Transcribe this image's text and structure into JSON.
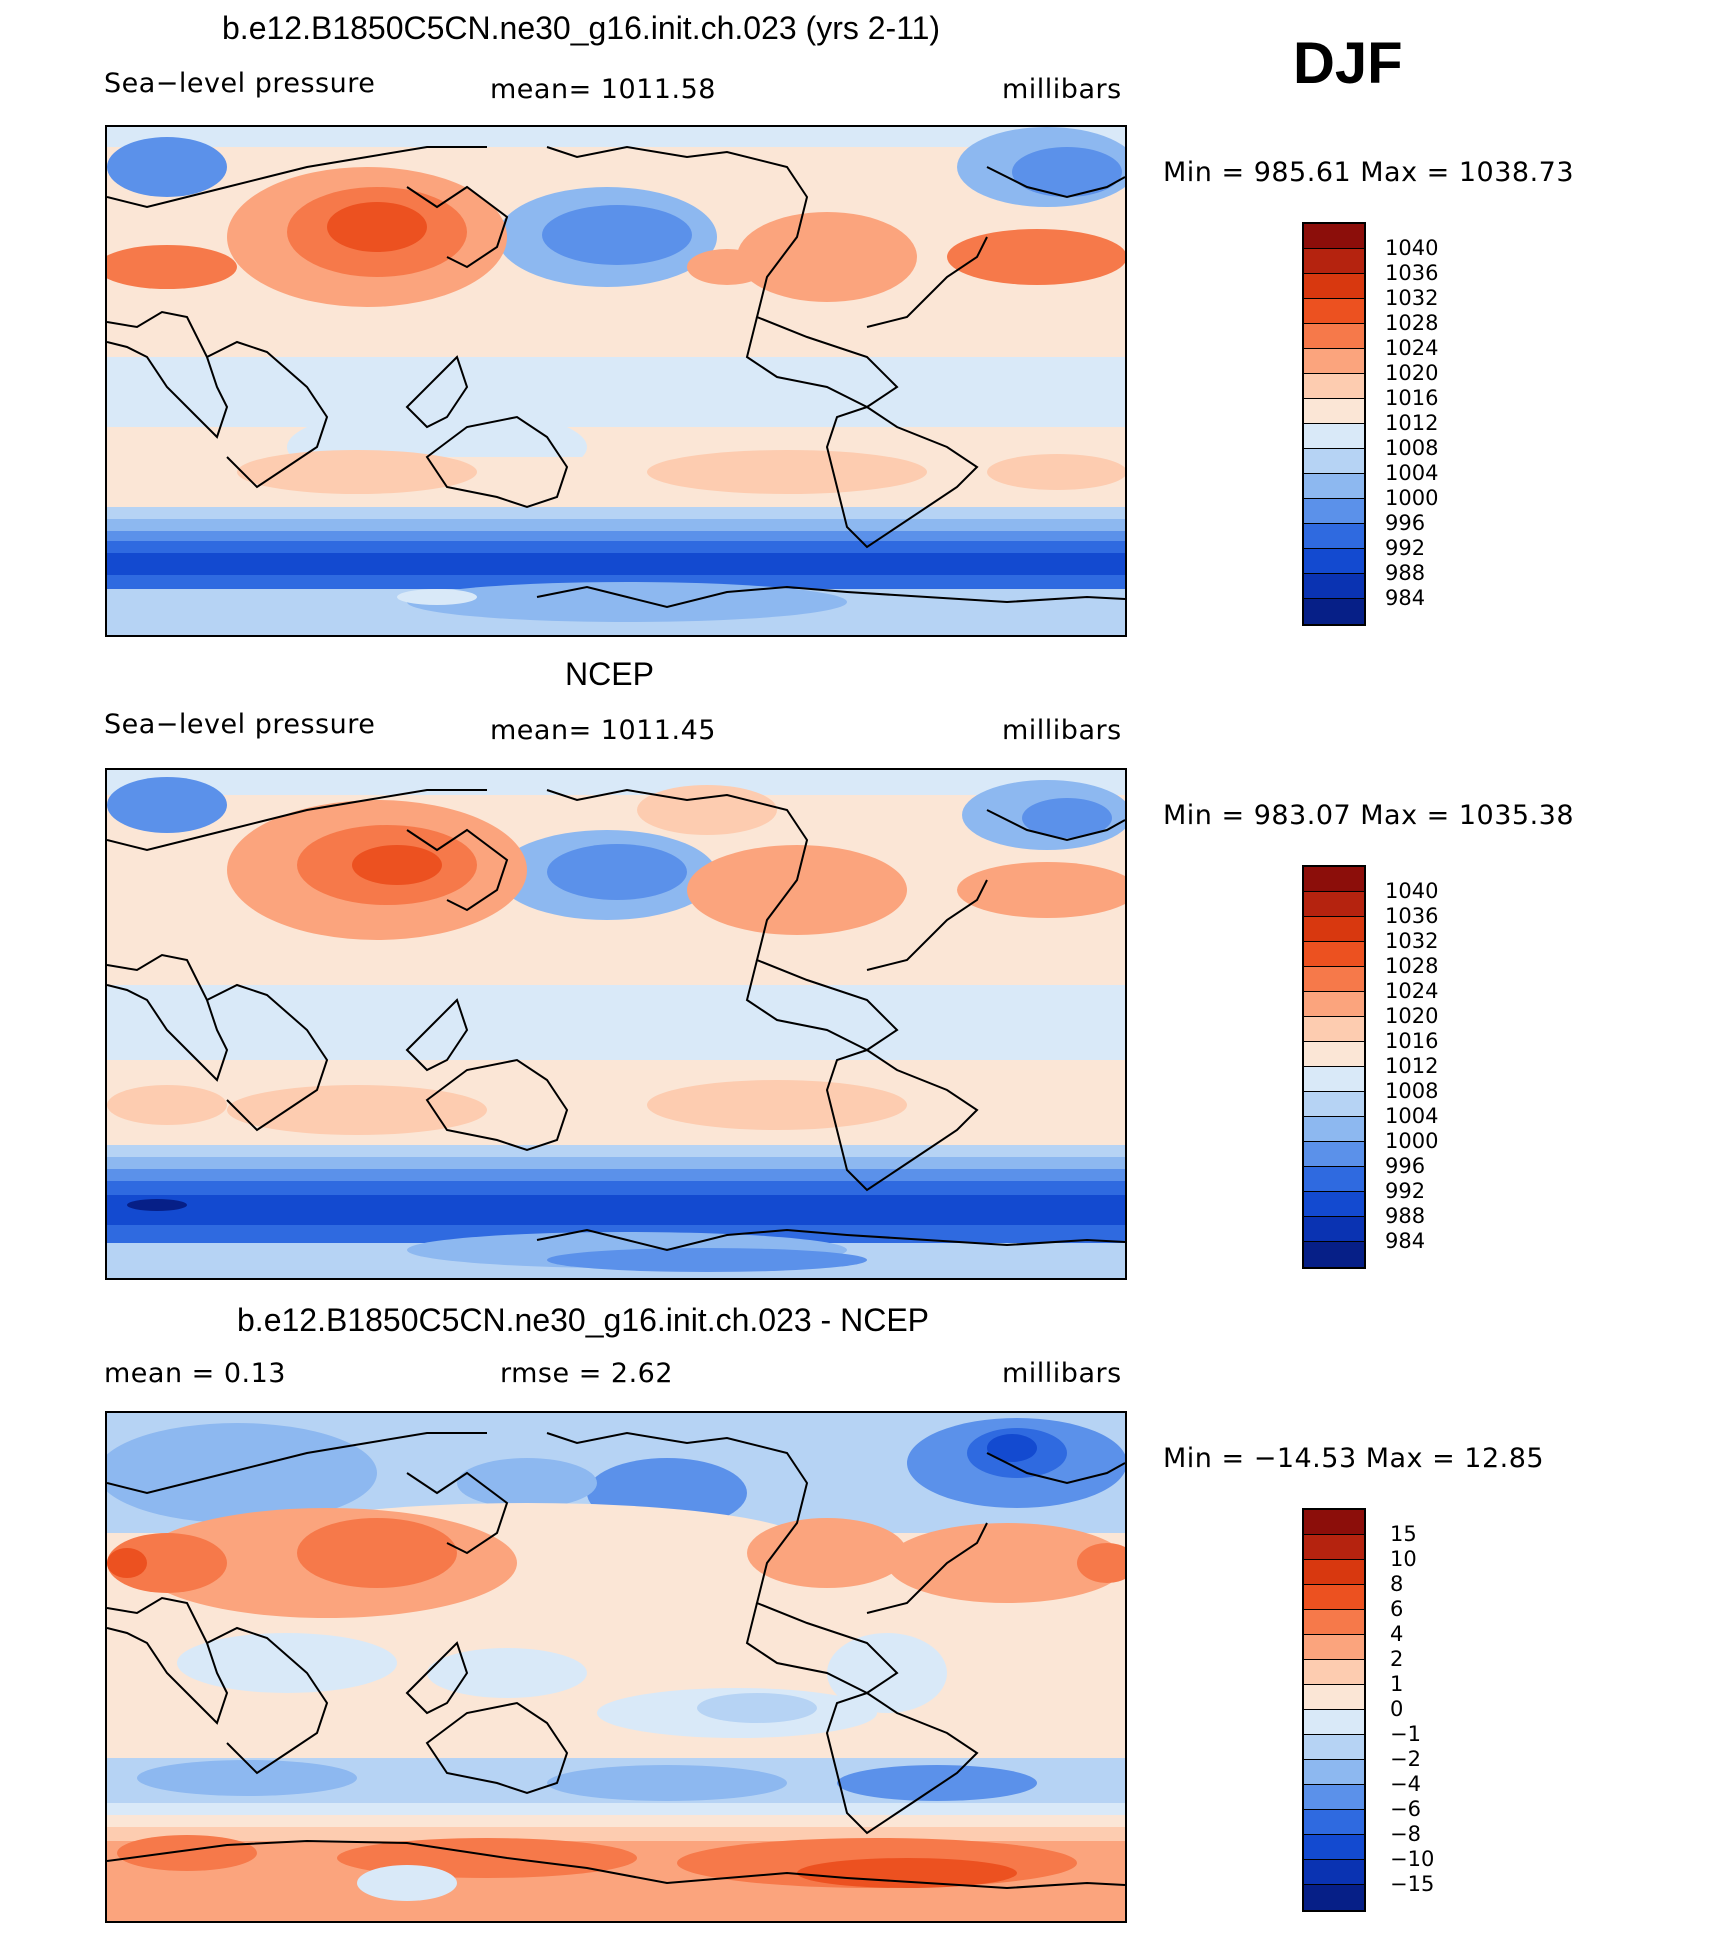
{
  "season": "DJF",
  "panels": [
    {
      "title": "b.e12.B1850C5CN.ne30_g16.init.ch.023 (yrs 2-11)",
      "left_label": "Sea−level pressure",
      "center_label": "mean=  1011.58",
      "right_label": "millibars",
      "minmax": "Min  =  985.61  Max  =  1038.73",
      "colorbar": {
        "labels": [
          "1040",
          "1036",
          "1032",
          "1028",
          "1024",
          "1020",
          "1016",
          "1012",
          "1008",
          "1004",
          "1000",
          "996",
          "992",
          "988",
          "984"
        ],
        "colors": [
          "#8c0e0a",
          "#b5230f",
          "#d8380f",
          "#ec5120",
          "#f6794a",
          "#fba47d",
          "#fdccb0",
          "#fbe6d6",
          "#d9e9f8",
          "#b6d3f4",
          "#8db8f0",
          "#5b91ea",
          "#2f6ae0",
          "#134ad0",
          "#0a33b2",
          "#061f87"
        ]
      }
    },
    {
      "title": "NCEP",
      "left_label": "Sea−level pressure",
      "center_label": "mean=  1011.45",
      "right_label": "millibars",
      "minmax": "Min  =  983.07  Max  =  1035.38",
      "colorbar": {
        "labels": [
          "1040",
          "1036",
          "1032",
          "1028",
          "1024",
          "1020",
          "1016",
          "1012",
          "1008",
          "1004",
          "1000",
          "996",
          "992",
          "988",
          "984"
        ],
        "colors": [
          "#8c0e0a",
          "#b5230f",
          "#d8380f",
          "#ec5120",
          "#f6794a",
          "#fba47d",
          "#fdccb0",
          "#fbe6d6",
          "#d9e9f8",
          "#b6d3f4",
          "#8db8f0",
          "#5b91ea",
          "#2f6ae0",
          "#134ad0",
          "#0a33b2",
          "#061f87"
        ]
      }
    },
    {
      "title": "b.e12.B1850C5CN.ne30_g16.init.ch.023 - NCEP",
      "left_label": "mean  =     0.13",
      "center_label": "rmse  =     2.62",
      "right_label": "millibars",
      "minmax": "Min  =  −14.53  Max  =    12.85",
      "colorbar": {
        "labels": [
          "15",
          "10",
          "8",
          "6",
          "4",
          "2",
          "1",
          "0",
          "−1",
          "−2",
          "−4",
          "−6",
          "−8",
          "−10",
          "−15"
        ],
        "colors": [
          "#8c0e0a",
          "#b5230f",
          "#d8380f",
          "#ec5120",
          "#f6794a",
          "#fba47d",
          "#fdccb0",
          "#fbe6d6",
          "#d9e9f8",
          "#b6d3f4",
          "#8db8f0",
          "#5b91ea",
          "#2f6ae0",
          "#134ad0",
          "#0a33b2",
          "#061f87"
        ]
      }
    }
  ]
}
